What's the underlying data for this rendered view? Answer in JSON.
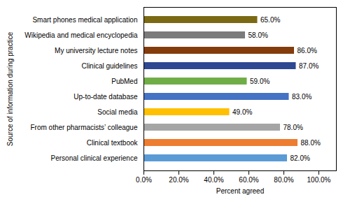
{
  "chart_data": {
    "type": "bar",
    "orientation": "horizontal",
    "categories": [
      "Smart phones medical application",
      "Wikipedia and medical encyclopedia",
      "My university lecture notes",
      "Clinical guidelines",
      "PubMed",
      "Up-to-date database",
      "Social media",
      "From other pharmacists’ colleague",
      "Clinical textbook",
      "Personal clinical experience"
    ],
    "values": [
      65.0,
      58.0,
      86.0,
      87.0,
      59.0,
      83.0,
      49.0,
      78.0,
      88.0,
      82.0
    ],
    "value_labels": [
      "65.0%",
      "58.0%",
      "86.0%",
      "87.0%",
      "59.0%",
      "83.0%",
      "49.0%",
      "78.0%",
      "88.0%",
      "82.0%"
    ],
    "data_labels": true,
    "colors": [
      "#7B6914",
      "#7B7B7B",
      "#843C0C",
      "#2E4891",
      "#70AD47",
      "#4472C4",
      "#FFC000",
      "#A5A5A5",
      "#ED7D31",
      "#5B9BD5"
    ],
    "xlabel": "Percent agreed",
    "ylabel": "Source of information during practice",
    "xlim": [
      0,
      110
    ],
    "xticks": [
      {
        "value": 0,
        "label": "0.0%"
      },
      {
        "value": 20,
        "label": "20.0%"
      },
      {
        "value": 40,
        "label": "40.0%"
      },
      {
        "value": 60,
        "label": "60.0%"
      },
      {
        "value": 80,
        "label": "80.0%"
      },
      {
        "value": 100,
        "label": "100.0%"
      }
    ],
    "grid": false
  }
}
